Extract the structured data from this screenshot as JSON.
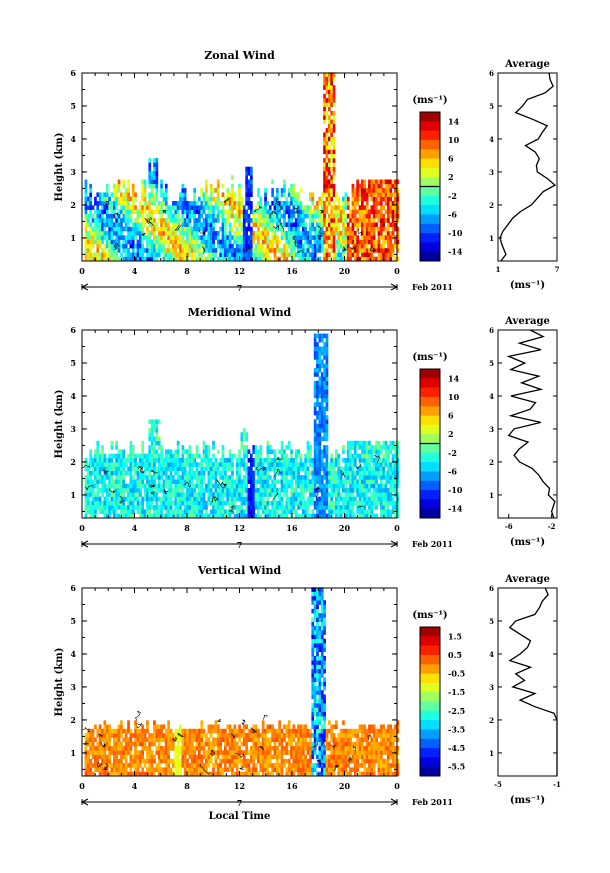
{
  "panels": [
    {
      "title": "Zonal Wind",
      "ylabel": "Height (km)",
      "yticks": [
        "1",
        "2",
        "3",
        "4",
        "5",
        "6"
      ],
      "xticks": [
        "0",
        "4",
        "8",
        "12",
        "16",
        "20",
        "0"
      ],
      "day": "7",
      "date": "Feb 2011",
      "cbar_unit": "(ms⁻¹)",
      "cbar_ticks": [
        "14",
        "10",
        "6",
        "2",
        "-2",
        "-6",
        "-10",
        "-14"
      ],
      "avg_title": "Average",
      "avg_xticks": [
        "1",
        "7"
      ],
      "avg_unit": "(ms⁻¹)"
    },
    {
      "title": "Meridional Wind",
      "ylabel": "Height (km)",
      "yticks": [
        "1",
        "2",
        "3",
        "4",
        "5",
        "6"
      ],
      "xticks": [
        "0",
        "4",
        "8",
        "12",
        "16",
        "20",
        "0"
      ],
      "day": "7",
      "date": "Feb 2011",
      "cbar_unit": "(ms⁻¹)",
      "cbar_ticks": [
        "14",
        "10",
        "6",
        "2",
        "-2",
        "-6",
        "-10",
        "-14"
      ],
      "avg_title": "Average",
      "avg_xticks": [
        "-6",
        "-2"
      ],
      "avg_unit": "(ms⁻¹)"
    },
    {
      "title": "Vertical Wind",
      "ylabel": "Height (km)",
      "yticks": [
        "1",
        "2",
        "3",
        "4",
        "5",
        "6"
      ],
      "xticks": [
        "0",
        "4",
        "8",
        "12",
        "16",
        "20",
        "0"
      ],
      "day": "7",
      "date": "Feb 2011",
      "xlabel": "Local Time",
      "cbar_unit": "(ms⁻¹)",
      "cbar_ticks": [
        "1.5",
        "0.5",
        "-0.5",
        "-1.5",
        "-2.5",
        "-3.5",
        "-4.5",
        "-5.5"
      ],
      "avg_title": "Average",
      "avg_xticks": [
        "-5",
        "-1"
      ],
      "avg_unit": "(ms⁻¹)"
    }
  ],
  "chart_data": [
    {
      "type": "heatmap",
      "title": "Zonal Wind",
      "ylabel": "Height (km)",
      "x_range_hours": [
        0,
        24
      ],
      "ylim": [
        0.3,
        6
      ],
      "color_range": [
        -16,
        16
      ],
      "profile_xlim": [
        1,
        7
      ],
      "profile": {
        "height": [
          0.3,
          0.5,
          0.8,
          1.0,
          1.2,
          1.4,
          1.6,
          1.8,
          2.0,
          2.2,
          2.4,
          2.6,
          2.8,
          3.0,
          3.2,
          3.4,
          3.6,
          3.8,
          4.0,
          4.2,
          4.4,
          4.6,
          4.8,
          5.0,
          5.2,
          5.4,
          5.6,
          5.8,
          6.0
        ],
        "value": [
          1.3,
          1.8,
          1.4,
          1.2,
          1.5,
          2.0,
          2.5,
          3.3,
          4.4,
          5.0,
          5.6,
          6.8,
          6.0,
          5.0,
          4.9,
          5.2,
          4.8,
          3.8,
          5.1,
          5.5,
          6.0,
          4.5,
          2.8,
          3.5,
          4.0,
          5.8,
          6.6,
          6.3,
          6.2
        ]
      }
    },
    {
      "type": "heatmap",
      "title": "Meridional Wind",
      "ylabel": "Height (km)",
      "x_range_hours": [
        0,
        24
      ],
      "ylim": [
        0.3,
        6
      ],
      "color_range": [
        -16,
        16
      ],
      "profile_xlim": [
        -7,
        -1.5
      ],
      "profile": {
        "height": [
          0.3,
          0.5,
          0.8,
          1.0,
          1.2,
          1.4,
          1.6,
          1.8,
          2.0,
          2.2,
          2.4,
          2.6,
          2.8,
          3.0,
          3.2,
          3.4,
          3.6,
          3.8,
          4.0,
          4.2,
          4.4,
          4.6,
          4.8,
          5.0,
          5.2,
          5.4,
          5.6,
          5.8,
          6.0
        ],
        "value": [
          -1.8,
          -2.0,
          -1.7,
          -2.3,
          -2.2,
          -2.8,
          -3.2,
          -3.8,
          -5.0,
          -5.5,
          -5.0,
          -4.2,
          -6.0,
          -5.5,
          -3.0,
          -5.8,
          -4.0,
          -3.5,
          -5.8,
          -3.0,
          -4.8,
          -3.2,
          -5.8,
          -4.5,
          -6.0,
          -3.0,
          -5.0,
          -2.8,
          -4.0
        ]
      }
    },
    {
      "type": "heatmap",
      "title": "Vertical Wind",
      "ylabel": "Height (km)",
      "xlabel": "Local Time",
      "x_range_hours": [
        0,
        24
      ],
      "ylim": [
        0.3,
        6
      ],
      "color_range": [
        -6,
        2
      ],
      "profile_xlim": [
        -5,
        -1
      ],
      "profile": {
        "height": [
          0.3,
          0.5,
          0.8,
          1.0,
          1.2,
          1.4,
          1.6,
          1.8,
          2.0,
          2.2,
          2.4,
          2.6,
          2.8,
          3.0,
          3.2,
          3.4,
          3.6,
          3.8,
          4.0,
          4.2,
          4.4,
          4.6,
          4.8,
          5.0,
          5.2,
          5.4,
          5.6,
          5.8,
          6.0
        ],
        "value": [
          -0.6,
          -0.6,
          -0.6,
          -0.6,
          -0.6,
          -0.6,
          -0.6,
          -0.6,
          -0.7,
          -1.2,
          -2.5,
          -3.5,
          -2.5,
          -4.0,
          -3.2,
          -3.8,
          -2.8,
          -4.2,
          -3.5,
          -3.0,
          -2.8,
          -3.5,
          -4.2,
          -3.8,
          -2.5,
          -2.2,
          -2.0,
          -1.6,
          -1.8
        ]
      }
    }
  ]
}
